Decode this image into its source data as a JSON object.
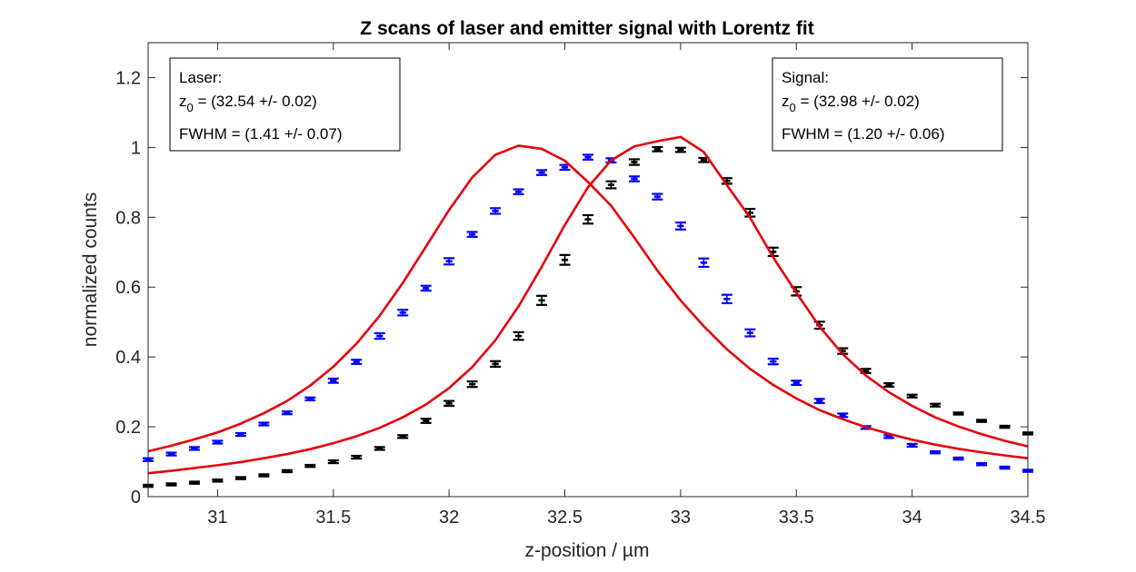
{
  "chart_data": {
    "type": "scatter",
    "title": "Z scans of laser and emitter signal with Lorentz fit",
    "xlabel": "z-position / µm",
    "ylabel": "normalized counts",
    "xlim": [
      30.7,
      34.5
    ],
    "ylim": [
      0,
      1.3
    ],
    "x_ticks": [
      "31",
      "31.5",
      "32",
      "32.5",
      "33",
      "33.5",
      "34",
      "34.5"
    ],
    "y_ticks": [
      "0",
      "0.2",
      "0.4",
      "0.6",
      "0.8",
      "1",
      "1.2"
    ],
    "grid": false,
    "colors": {
      "laser": "#0000ff",
      "signal": "#000000",
      "fit": "#e8000b",
      "axis": "#262626"
    },
    "series": [
      {
        "kind": "errorbar",
        "color": "#0000ff",
        "x": [
          30.7,
          30.8,
          30.9,
          31.0,
          31.1,
          31.2,
          31.3,
          31.4,
          31.5,
          31.6,
          31.7,
          31.8,
          31.9,
          32.0,
          32.1,
          32.2,
          32.3,
          32.4,
          32.5,
          32.6,
          32.7,
          32.8,
          32.9,
          33.0,
          33.1,
          33.2,
          33.3,
          33.4,
          33.5,
          33.6,
          33.7,
          33.8,
          33.9,
          34.0,
          34.1,
          34.2,
          34.3,
          34.4,
          34.5
        ],
        "y": [
          0.106,
          0.122,
          0.138,
          0.156,
          0.178,
          0.208,
          0.24,
          0.28,
          0.332,
          0.386,
          0.46,
          0.527,
          0.597,
          0.674,
          0.751,
          0.818,
          0.873,
          0.928,
          0.943,
          0.972,
          0.963,
          0.91,
          0.859,
          0.775,
          0.67,
          0.566,
          0.469,
          0.387,
          0.326,
          0.274,
          0.233,
          0.198,
          0.172,
          0.147,
          0.127,
          0.109,
          0.093,
          0.083,
          0.074
        ],
        "err": [
          0.004,
          0.004,
          0.004,
          0.004,
          0.004,
          0.004,
          0.004,
          0.004,
          0.006,
          0.006,
          0.008,
          0.008,
          0.007,
          0.009,
          0.007,
          0.008,
          0.007,
          0.007,
          0.007,
          0.007,
          0.006,
          0.007,
          0.008,
          0.01,
          0.012,
          0.012,
          0.01,
          0.008,
          0.006,
          0.006,
          0.005,
          0.004,
          0.004,
          0.004,
          0.003,
          0.003,
          0.003,
          0.003,
          0.003
        ]
      },
      {
        "kind": "errorbar",
        "color": "#000000",
        "x": [
          30.7,
          30.8,
          30.9,
          31.0,
          31.1,
          31.2,
          31.3,
          31.4,
          31.5,
          31.6,
          31.7,
          31.8,
          31.9,
          32.0,
          32.1,
          32.2,
          32.3,
          32.4,
          32.5,
          32.6,
          32.7,
          32.8,
          32.9,
          33.0,
          33.1,
          33.2,
          33.3,
          33.4,
          33.5,
          33.6,
          33.7,
          33.8,
          33.9,
          34.0,
          34.1,
          34.2,
          34.3,
          34.4,
          34.5
        ],
        "y": [
          0.031,
          0.035,
          0.04,
          0.046,
          0.053,
          0.061,
          0.073,
          0.088,
          0.1,
          0.113,
          0.138,
          0.172,
          0.217,
          0.267,
          0.322,
          0.38,
          0.46,
          0.562,
          0.678,
          0.794,
          0.893,
          0.958,
          0.995,
          0.993,
          0.964,
          0.904,
          0.813,
          0.701,
          0.588,
          0.491,
          0.417,
          0.36,
          0.32,
          0.288,
          0.262,
          0.238,
          0.217,
          0.2,
          0.181
        ],
        "err": [
          0.003,
          0.003,
          0.003,
          0.003,
          0.003,
          0.003,
          0.003,
          0.003,
          0.004,
          0.004,
          0.004,
          0.004,
          0.006,
          0.007,
          0.008,
          0.008,
          0.011,
          0.013,
          0.014,
          0.012,
          0.01,
          0.008,
          0.006,
          0.006,
          0.006,
          0.008,
          0.011,
          0.012,
          0.012,
          0.01,
          0.008,
          0.006,
          0.005,
          0.004,
          0.004,
          0.003,
          0.003,
          0.003,
          0.003
        ]
      },
      {
        "kind": "fit",
        "color": "#e8000b",
        "x": [
          30.7,
          30.8,
          30.9,
          31.0,
          31.1,
          31.2,
          31.3,
          31.4,
          31.5,
          31.6,
          31.7,
          31.8,
          31.9,
          32.0,
          32.1,
          32.2,
          32.3,
          32.4,
          32.5,
          32.6,
          32.7,
          32.8,
          32.9,
          33.0,
          33.1,
          33.2,
          33.3,
          33.4,
          33.5,
          33.6,
          33.7,
          33.8,
          33.9,
          34.0,
          34.1,
          34.2,
          34.3,
          34.4,
          34.5
        ],
        "y": [
          0.13,
          0.146,
          0.164,
          0.184,
          0.209,
          0.239,
          0.274,
          0.318,
          0.372,
          0.438,
          0.518,
          0.612,
          0.716,
          0.821,
          0.914,
          0.979,
          1.005,
          0.996,
          0.962,
          0.901,
          0.833,
          0.742,
          0.647,
          0.562,
          0.488,
          0.422,
          0.366,
          0.32,
          0.281,
          0.248,
          0.222,
          0.199,
          0.18,
          0.163,
          0.149,
          0.137,
          0.127,
          0.118,
          0.11
        ]
      },
      {
        "kind": "fit",
        "color": "#e8000b",
        "x": [
          30.7,
          30.8,
          30.9,
          31.0,
          31.1,
          31.2,
          31.3,
          31.4,
          31.5,
          31.6,
          31.7,
          31.8,
          31.9,
          32.0,
          32.1,
          32.2,
          32.3,
          32.4,
          32.5,
          32.6,
          32.7,
          32.8,
          32.9,
          33.0,
          33.1,
          33.2,
          33.3,
          33.4,
          33.5,
          33.6,
          33.7,
          33.8,
          33.9,
          34.0,
          34.1,
          34.2,
          34.3,
          34.4,
          34.5
        ],
        "y": [
          0.067,
          0.074,
          0.082,
          0.09,
          0.099,
          0.11,
          0.122,
          0.136,
          0.153,
          0.173,
          0.197,
          0.227,
          0.264,
          0.311,
          0.371,
          0.448,
          0.545,
          0.658,
          0.778,
          0.886,
          0.963,
          1.003,
          1.018,
          1.03,
          0.987,
          0.892,
          0.799,
          0.685,
          0.584,
          0.487,
          0.408,
          0.347,
          0.299,
          0.26,
          0.227,
          0.201,
          0.179,
          0.16,
          0.144
        ]
      }
    ],
    "annotations": {
      "laser": {
        "line1": "Laser:",
        "z_prefix": "z",
        "z_sub": "0",
        "z_rest": " = (32.54 +/- 0.02)",
        "fwhm": "FWHM = (1.41 +/- 0.07)"
      },
      "signal": {
        "line1": "Signal:",
        "z_prefix": "z",
        "z_sub": "0",
        "z_rest": " = (32.98 +/- 0.02)",
        "fwhm": "FWHM = (1.20 +/- 0.06)"
      }
    }
  }
}
